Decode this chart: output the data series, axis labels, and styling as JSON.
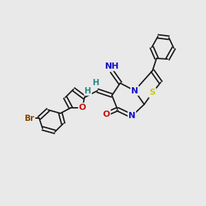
{
  "background_color": "#e9e9e9",
  "bond_color": "#1a1a1a",
  "atom_colors": {
    "S": "#cccc00",
    "N": "#1111cc",
    "O": "#cc1111",
    "Br": "#884400",
    "H": "#2a8888"
  },
  "figsize": [
    3.0,
    3.0
  ],
  "dpi": 100
}
